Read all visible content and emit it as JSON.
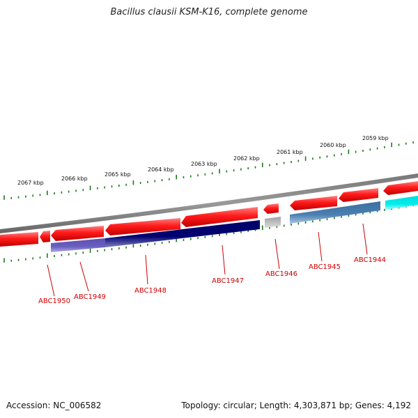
{
  "title": "Bacillus clausii KSM-K16, complete genome",
  "accession": "Accession: NC_006582",
  "summary": "Topology: circular; Length: 4,303,871 bp; Genes: 4,192",
  "colors": {
    "tick": "#1a7a1a",
    "backbone": "#888888",
    "forward_gene": "#e60000",
    "reverse_dark": "#000070",
    "reverse_purple": "#5a4fb0",
    "reverse_steel": "#4a7fb0",
    "reverse_cyan": "#00e6e6",
    "reverse_gray": "#bbbbbb",
    "gene_label": "#cc0000"
  },
  "scale_labels": [
    "2067 kbp",
    "2066 kbp",
    "2065 kbp",
    "2064 kbp",
    "2063 kbp",
    "2062 kbp",
    "2061 kbp",
    "2060 kbp",
    "2059 kbp"
  ],
  "gene_labels": [
    "ABC1950",
    "ABC1949",
    "ABC1948",
    "ABC1947",
    "ABC1946",
    "ABC1945",
    "ABC1944"
  ]
}
